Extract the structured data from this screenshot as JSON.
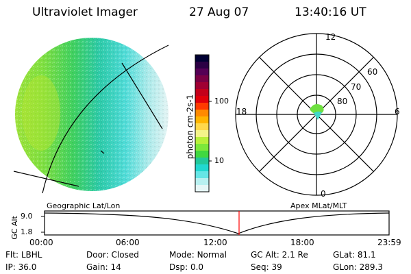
{
  "header": {
    "title": "Ultraviolet Imager",
    "date": "27 Aug 07",
    "time": "13:40:16 UT"
  },
  "colorbar": {
    "unit_label": "photon cm-2s-1",
    "ticks": [
      "100",
      "10"
    ],
    "colors_top_to_bottom": [
      "#000033",
      "#2b0044",
      "#550055",
      "#7a0044",
      "#a00033",
      "#c4001a",
      "#e0000a",
      "#ff3a00",
      "#ff8a00",
      "#ffb400",
      "#ffd84a",
      "#f4f48a",
      "#b8f03a",
      "#7ce83a",
      "#40d840",
      "#22c89a",
      "#22d8d0",
      "#66e6e6",
      "#b8f0f0",
      "#e6f6f6"
    ]
  },
  "globe_view": {
    "caption": "Geographic Lat/Lon"
  },
  "polar_plot": {
    "caption": "Apex MLat/MLT",
    "mlt_labels": {
      "top": "12",
      "bottom": "0",
      "left": "18",
      "right": "6"
    },
    "lat_labels": [
      "60",
      "70",
      "80"
    ]
  },
  "altitude_panel": {
    "axis_label": "GC Alt",
    "y_ticks": [
      "9.0",
      "1.8"
    ],
    "x_ticks": [
      "00:00",
      "06:00",
      "12:00",
      "18:00",
      "23:59"
    ],
    "current_time_marker": "13:40",
    "marker_color": "#ff0000"
  },
  "info": {
    "row1": [
      {
        "label": "Flt:",
        "value": "LBHL"
      },
      {
        "label": "Door:",
        "value": "Closed"
      },
      {
        "label": "Mode:",
        "value": "Normal"
      },
      {
        "label": "GC Alt:",
        "value": "2.1 Re"
      },
      {
        "label": "GLat:",
        "value": "81.1"
      }
    ],
    "row2": [
      {
        "label": "IP:",
        "value": "36.0"
      },
      {
        "label": "Gain:",
        "value": "14"
      },
      {
        "label": "Dsp:",
        "value": "0.0"
      },
      {
        "label": "Seq:",
        "value": "39"
      },
      {
        "label": "GLon:",
        "value": "289.3"
      }
    ]
  }
}
